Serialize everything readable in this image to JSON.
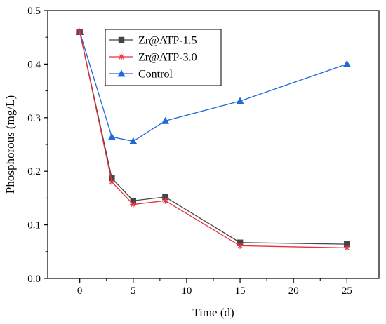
{
  "chart_data": {
    "type": "line",
    "xlabel": "Time (d)",
    "ylabel": "Phosphorous (mg/L)",
    "x": [
      0,
      3,
      5,
      8,
      15,
      25
    ],
    "xlim": [
      -3,
      28
    ],
    "ylim": [
      0,
      0.5
    ],
    "xticks": [
      "0",
      "5",
      "10",
      "15",
      "20",
      "25"
    ],
    "yticks": [
      "0.0",
      "0.1",
      "0.2",
      "0.3",
      "0.4",
      "0.5"
    ],
    "grid": false,
    "legend_position": "top-left",
    "series": [
      {
        "name": "Zr@ATP-1.5",
        "marker": "square",
        "color": "#444444",
        "values": [
          0.46,
          0.187,
          0.145,
          0.152,
          0.067,
          0.064
        ]
      },
      {
        "name": "Zr@ATP-3.0",
        "marker": "asterisk",
        "color": "#e8313a",
        "values": [
          0.46,
          0.18,
          0.138,
          0.145,
          0.061,
          0.057
        ]
      },
      {
        "name": "Control",
        "marker": "triangle",
        "color": "#1f6ad6",
        "values": [
          0.46,
          0.264,
          0.256,
          0.294,
          0.331,
          0.4
        ]
      }
    ]
  }
}
